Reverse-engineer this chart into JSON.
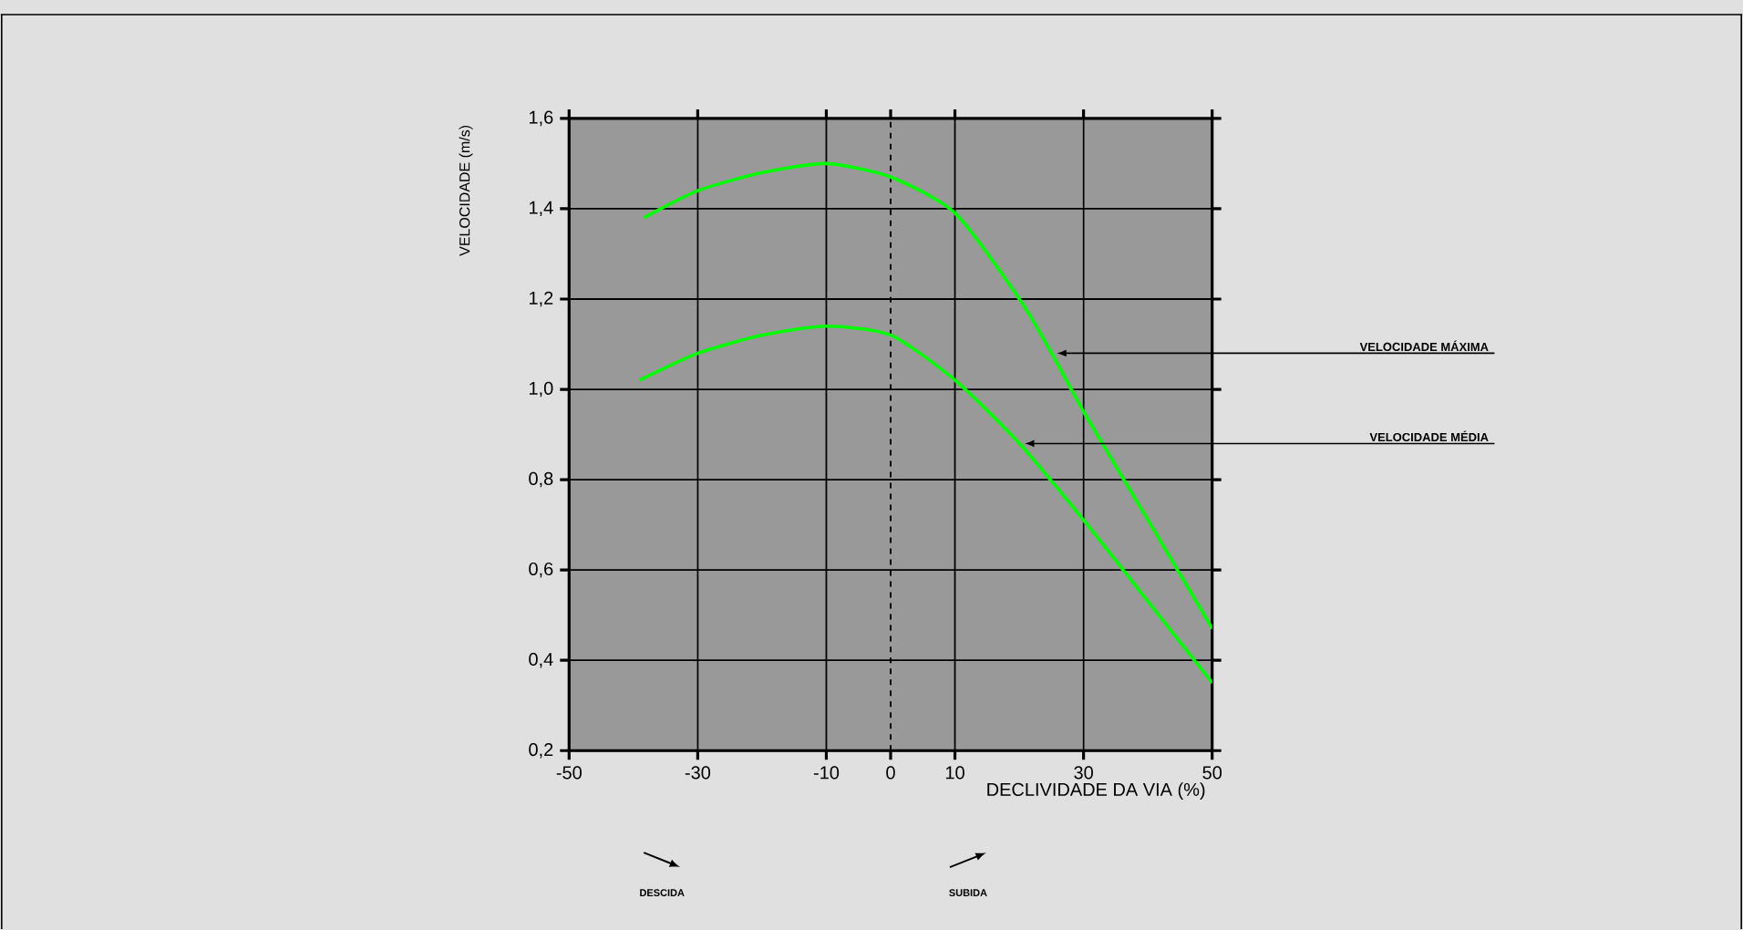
{
  "chart_data": {
    "type": "line",
    "xlabel": "DECLIVIDADE DA VIA (%)",
    "ylabel": "VELOCIDADE (m/s)",
    "xlim": [
      -50,
      50
    ],
    "xticks": [
      -50,
      -30,
      -10,
      0,
      10,
      30,
      50
    ],
    "ylim": [
      0.2,
      1.6
    ],
    "yticks": [
      {
        "value": 0.2,
        "label": "0,2"
      },
      {
        "value": 0.4,
        "label": "0,4"
      },
      {
        "value": 0.6,
        "label": "0,6"
      },
      {
        "value": 0.8,
        "label": "0,8"
      },
      {
        "value": 1.0,
        "label": "1,0"
      },
      {
        "value": 1.2,
        "label": "1,2"
      },
      {
        "value": 1.4,
        "label": "1,4"
      },
      {
        "value": 1.6,
        "label": "1,6"
      }
    ],
    "grid": true,
    "marker": "none",
    "line_style": "solid",
    "series": [
      {
        "name": "VELOCIDADE MÁXIMA",
        "color": "#00ff00",
        "x": [
          -38.4,
          -30,
          -20,
          -10,
          0,
          10,
          20,
          25,
          30,
          40,
          50
        ],
        "values": [
          1.38,
          1.44,
          1.48,
          1.5,
          1.47,
          1.39,
          1.2,
          1.08,
          0.95,
          0.71,
          0.47
        ]
      },
      {
        "name": "VELOCIDADE MÉDIA",
        "color": "#00ff00",
        "x": [
          -39.1,
          -30,
          -20,
          -10,
          0,
          10,
          20,
          30,
          40,
          50
        ],
        "values": [
          1.02,
          1.08,
          1.12,
          1.14,
          1.12,
          1.02,
          0.88,
          0.71,
          0.53,
          0.35
        ]
      }
    ],
    "ref_lines": [
      {
        "axis": "x",
        "value": 0,
        "color": "#000000",
        "line_style": "dashed"
      }
    ],
    "annotations": [
      "DESCIDA",
      "SUBIDA"
    ]
  }
}
